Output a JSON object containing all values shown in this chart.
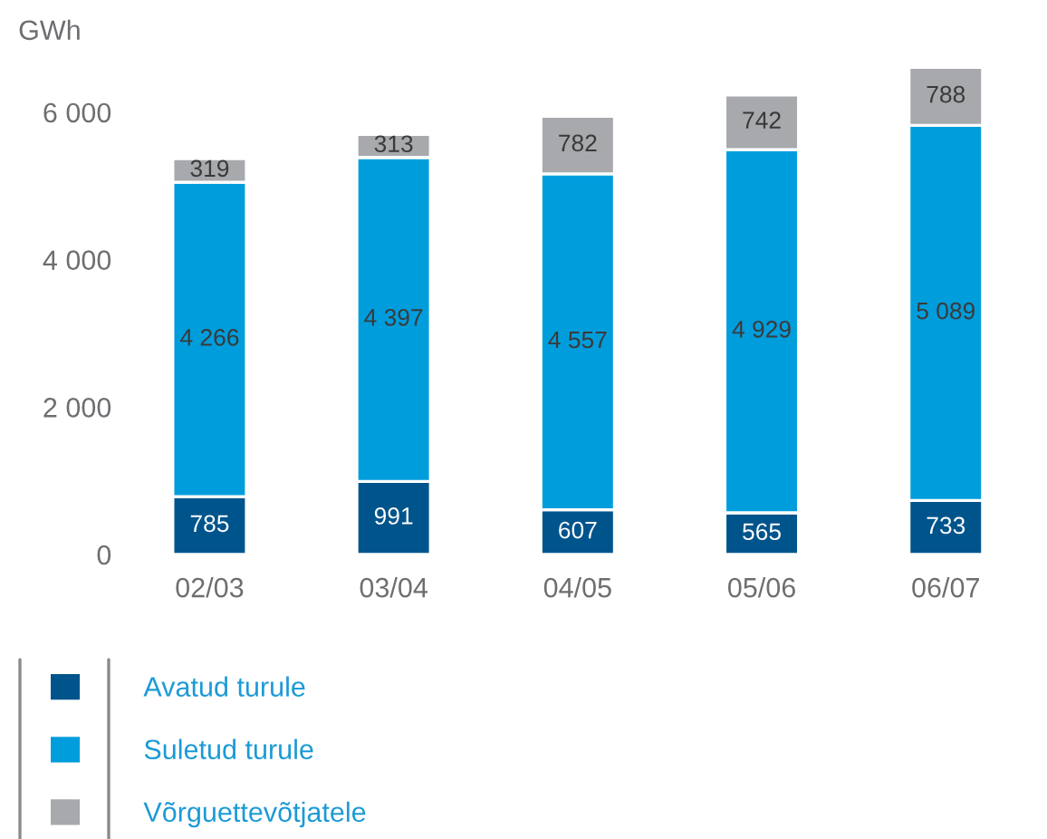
{
  "chart_data": {
    "type": "bar",
    "stacked": true,
    "ylabel": "GWh",
    "legend": "bottom left",
    "categories": [
      "02/03",
      "03/04",
      "04/05",
      "05/06",
      "06/07"
    ],
    "series": [
      {
        "name": "Avatud turule",
        "color": "#00548c",
        "values": [
          785,
          991,
          607,
          565,
          733
        ],
        "value_labels": [
          "785",
          "991",
          "607",
          "565",
          "733"
        ]
      },
      {
        "name": "Suletud turule",
        "color": "#009ddc",
        "values": [
          4266,
          4397,
          4557,
          4929,
          5089
        ],
        "value_labels": [
          "4 266",
          "4 397",
          "4 557",
          "4 929",
          "5 089"
        ]
      },
      {
        "name": "Võrguettevõtjatele",
        "color": "#a7a9ac",
        "values": [
          319,
          313,
          782,
          742,
          788
        ],
        "value_labels": [
          "319",
          "313",
          "782",
          "742",
          "788"
        ]
      }
    ],
    "ylim": [
      0,
      6700
    ],
    "yticks": [
      0,
      {
        "value": 2000,
        "label": "2 000"
      },
      {
        "value": 4000,
        "label": "4 000"
      },
      {
        "value": 6000,
        "label": "6 000"
      }
    ]
  }
}
